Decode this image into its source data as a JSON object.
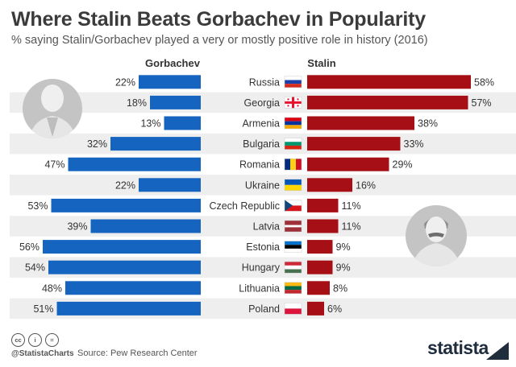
{
  "title": "Where Stalin Beats Gorbachev in Popularity",
  "subtitle": "% saying Stalin/Gorbachev played a very or mostly positive role in history (2016)",
  "footer": {
    "icons": [
      "cc-icon",
      "by-icon",
      "nd-icon"
    ],
    "icon_text": {
      "cc": "cc",
      "by": "i",
      "nd": "="
    },
    "handle": "@StatistaCharts",
    "source": "Source: Pew Research Center",
    "logo": "statista"
  },
  "colors": {
    "gorbachev": "#1565c0",
    "stalin": "#a50f15",
    "band": "#eeeeee",
    "portrait": "#c4c4c4"
  },
  "chart_data": {
    "type": "bar",
    "orientation": "horizontal-diverging",
    "categories": [
      "Russia",
      "Georgia",
      "Armenia",
      "Bulgaria",
      "Romania",
      "Ukraine",
      "Czech Republic",
      "Latvia",
      "Estonia",
      "Hungary",
      "Lithuania",
      "Poland"
    ],
    "series": [
      {
        "name": "Gorbachev",
        "values": [
          22,
          18,
          13,
          32,
          47,
          22,
          53,
          39,
          56,
          54,
          48,
          51
        ]
      },
      {
        "name": "Stalin",
        "values": [
          58,
          57,
          38,
          33,
          29,
          16,
          11,
          11,
          9,
          9,
          8,
          6
        ]
      }
    ],
    "unit": "%",
    "xlim": [
      0,
      60
    ],
    "title": "Where Stalin Beats Gorbachev in Popularity",
    "xlabel": "",
    "ylabel": ""
  }
}
